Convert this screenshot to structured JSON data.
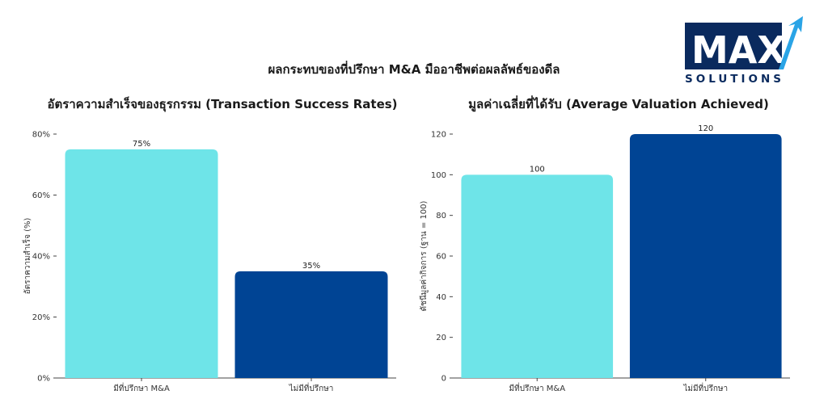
{
  "page": {
    "title": "ผลกระทบของที่ปรึกษา M&A มืออาชีพต่อผลลัพธ์ของดีล"
  },
  "logo": {
    "top_text": "MAX",
    "bottom_text": "SOLUTIONS",
    "colors": [
      "#0a2a5e",
      "#2aa4e6"
    ]
  },
  "chart_data": [
    {
      "type": "bar",
      "title": "อัตราความสำเร็จของธุรกรรม (Transaction Success Rates)",
      "categories": [
        "มีที่ปรึกษา M&A",
        "ไม่มีที่ปรึกษา"
      ],
      "values": [
        75,
        35
      ],
      "data_labels": [
        "75%",
        "35%"
      ],
      "ylabel": "อัตราความสำเร็จ (%)",
      "xlabel": "",
      "ylim": [
        0,
        80
      ],
      "yticks": [
        0,
        20,
        40,
        60,
        80
      ],
      "ytick_labels": [
        "0%",
        "20%",
        "40%",
        "60%",
        "80%"
      ],
      "colors": [
        "#6ee4e8",
        "#004494"
      ],
      "grid": false
    },
    {
      "type": "bar",
      "title": "มูลค่าเฉลี่ยที่ได้รับ (Average Valuation Achieved)",
      "categories": [
        "มีที่ปรึกษา M&A",
        "ไม่มีที่ปรึกษา"
      ],
      "values": [
        100,
        120
      ],
      "data_labels": [
        "100",
        "120"
      ],
      "ylabel": "ดัชนีมูลค่ากิจการ (ฐาน = 100)",
      "xlabel": "",
      "ylim": [
        0,
        120
      ],
      "yticks": [
        0,
        20,
        40,
        60,
        80,
        100,
        120
      ],
      "ytick_labels": [
        "0",
        "20",
        "40",
        "60",
        "80",
        "100",
        "120"
      ],
      "colors": [
        "#6ee4e8",
        "#004494"
      ],
      "grid": false
    }
  ]
}
